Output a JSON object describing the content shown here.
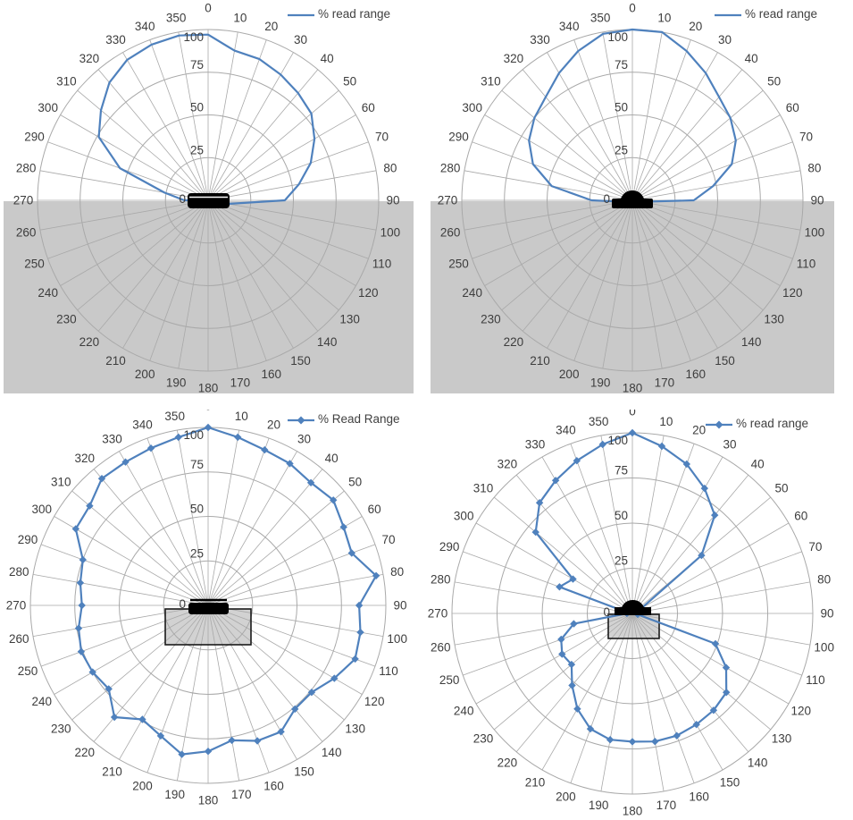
{
  "page": {
    "background": "#ffffff"
  },
  "style": {
    "series_color": "#4f81bd",
    "grid_color": "#a9a9a9",
    "band_color": "#c9c9c9",
    "box_fill": "#d2d2d2",
    "box_border": "#1a1a1a",
    "tag_color": "#000000",
    "label_color": "#3d3d3d"
  },
  "axis": {
    "angle_labels": [
      "0",
      "10",
      "20",
      "30",
      "40",
      "50",
      "60",
      "70",
      "80",
      "90",
      "100",
      "110",
      "120",
      "130",
      "140",
      "150",
      "160",
      "170",
      "180",
      "190",
      "200",
      "210",
      "220",
      "230",
      "240",
      "250",
      "260",
      "270",
      "280",
      "290",
      "300",
      "310",
      "320",
      "330",
      "340",
      "350"
    ],
    "radial_ticks": [
      "0",
      "25",
      "50",
      "75",
      "100"
    ]
  },
  "chart_data": [
    {
      "id": "top-left",
      "type": "polar",
      "title": "",
      "legend": "% read range",
      "markers": false,
      "lower_band": true,
      "center_glyph": "flat-tag-icon",
      "angle_step": 10,
      "rmax": 100,
      "rticks": [
        0,
        25,
        50,
        75,
        100
      ],
      "angles": [
        0,
        10,
        20,
        30,
        40,
        50,
        60,
        70,
        80,
        90,
        100,
        110,
        120,
        130,
        140,
        150,
        160,
        170,
        180,
        190,
        200,
        210,
        220,
        230,
        240,
        250,
        260,
        270,
        280,
        290,
        300,
        310,
        320,
        330,
        340,
        350
      ],
      "values": [
        97,
        89,
        88,
        85,
        82,
        79,
        72,
        64,
        54,
        45,
        12,
        0,
        0,
        0,
        0,
        0,
        0,
        0,
        0,
        0,
        0,
        0,
        0,
        0,
        0,
        0,
        0,
        14,
        26,
        55,
        74,
        82,
        90,
        95,
        97,
        98
      ]
    },
    {
      "id": "top-right",
      "type": "polar",
      "title": "",
      "legend": "% read range",
      "markers": false,
      "lower_band": true,
      "center_glyph": "dome-tag-icon",
      "angle_step": 10,
      "rmax": 100,
      "rticks": [
        0,
        25,
        50,
        75,
        100
      ],
      "angles": [
        0,
        10,
        20,
        30,
        40,
        50,
        60,
        70,
        80,
        90,
        100,
        110,
        120,
        130,
        140,
        150,
        160,
        170,
        180,
        190,
        200,
        210,
        220,
        230,
        240,
        250,
        260,
        270,
        280,
        290,
        300,
        310,
        320,
        330,
        340,
        350
      ],
      "values": [
        100,
        100,
        93,
        86,
        79,
        75,
        70,
        62,
        48,
        36,
        5,
        0,
        0,
        0,
        0,
        0,
        0,
        0,
        0,
        0,
        0,
        0,
        0,
        0,
        0,
        0,
        5,
        24,
        48,
        62,
        70,
        75,
        79,
        86,
        93,
        99
      ]
    },
    {
      "id": "bottom-left",
      "type": "polar",
      "title": "",
      "legend": "% Read Range",
      "markers": true,
      "lower_band": false,
      "center_glyph": "box-flat-tag-icon",
      "angle_step": 10,
      "rmax": 100,
      "rticks": [
        0,
        25,
        50,
        75,
        100
      ],
      "angles": [
        0,
        10,
        20,
        30,
        40,
        50,
        60,
        70,
        80,
        90,
        100,
        110,
        120,
        130,
        140,
        150,
        160,
        170,
        180,
        190,
        200,
        210,
        220,
        230,
        240,
        250,
        260,
        270,
        280,
        290,
        300,
        310,
        320,
        330,
        340,
        350
      ],
      "values": [
        100,
        96,
        93,
        92,
        90,
        92,
        88,
        86,
        96,
        85,
        87,
        88,
        82,
        76,
        76,
        82,
        81,
        77,
        82,
        85,
        78,
        74,
        82,
        73,
        75,
        76,
        74,
        71,
        73,
        75,
        86,
        87,
        93,
        93,
        94,
        96
      ]
    },
    {
      "id": "bottom-right",
      "type": "polar",
      "title": "",
      "legend": "% read range",
      "markers": true,
      "lower_band": false,
      "center_glyph": "box-dome-tag-icon",
      "angle_step": 10,
      "rmax": 100,
      "rticks": [
        0,
        25,
        50,
        75,
        100
      ],
      "angles": [
        0,
        10,
        20,
        30,
        40,
        50,
        60,
        70,
        80,
        90,
        100,
        110,
        120,
        130,
        140,
        150,
        160,
        170,
        180,
        190,
        200,
        210,
        220,
        230,
        240,
        250,
        260,
        270,
        280,
        290,
        300,
        310,
        320,
        330,
        340,
        350
      ],
      "values": [
        100,
        94,
        88,
        80,
        71,
        50,
        6,
        4,
        4,
        3,
        3,
        49,
        60,
        68,
        70,
        71,
        72,
        72,
        71,
        71,
        68,
        61,
        52,
        44,
        45,
        42,
        33,
        3,
        3,
        43,
        38,
        70,
        80,
        85,
        90,
        95
      ]
    }
  ]
}
